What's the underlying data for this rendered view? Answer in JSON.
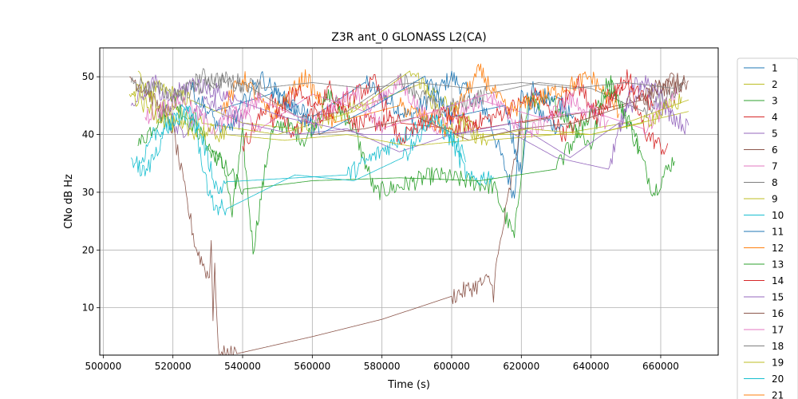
{
  "chart_data": {
    "type": "line",
    "title": "Z3R ant_0 GLONASS L2(CA)",
    "xlabel": "Time (s)",
    "ylabel": "CNo dB Hz",
    "xlim": [
      499000,
      676500
    ],
    "ylim": [
      1.8,
      55
    ],
    "xticks": [
      500000,
      520000,
      540000,
      560000,
      580000,
      600000,
      620000,
      640000,
      660000
    ],
    "yticks": [
      10,
      20,
      30,
      40,
      50
    ],
    "grid": true,
    "legend_position": "right",
    "series": [
      {
        "name": "1",
        "color": "#1f77b4",
        "points": [
          [
            531500,
            44
          ],
          [
            548000,
            47
          ],
          [
            560000,
            43
          ],
          [
            575000,
            49
          ],
          [
            588000,
            43
          ],
          [
            600000,
            50
          ],
          [
            610000,
            44
          ],
          [
            618000,
            29.3
          ],
          [
            620000,
            47
          ],
          [
            628000,
            42
          ],
          [
            632000,
            41
          ]
        ]
      },
      {
        "name": "2",
        "color": "#bcbd22",
        "points": [
          [
            507500,
            47
          ],
          [
            515000,
            48
          ],
          [
            525000,
            46
          ],
          [
            540000,
            42
          ],
          [
            555000,
            41
          ],
          [
            565000,
            43
          ],
          [
            575000,
            45
          ],
          [
            592000,
            49
          ],
          [
            598000,
            41
          ],
          [
            607000,
            40
          ],
          [
            640000,
            40
          ],
          [
            668000,
            44
          ]
        ]
      },
      {
        "name": "3",
        "color": "#2ca02c",
        "points": [
          [
            510000,
            38
          ],
          [
            520000,
            46
          ],
          [
            528000,
            40
          ],
          [
            535000,
            34
          ],
          [
            537000,
            26
          ],
          [
            540000,
            40
          ],
          [
            543000,
            20
          ],
          [
            548000,
            40
          ],
          [
            552000,
            42
          ],
          [
            558000,
            39
          ],
          [
            565000,
            47
          ],
          [
            572000,
            41
          ],
          [
            578000,
            30
          ],
          [
            585000,
            31
          ],
          [
            595000,
            33
          ],
          [
            604000,
            32
          ],
          [
            612000,
            31
          ],
          [
            618000,
            22
          ],
          [
            622000,
            46
          ],
          [
            630000,
            45
          ],
          [
            640000,
            38
          ],
          [
            645000,
            50
          ],
          [
            652000,
            40
          ],
          [
            658000,
            30
          ],
          [
            664000,
            36
          ]
        ]
      },
      {
        "name": "4",
        "color": "#d62728",
        "points": [
          [
            540000,
            38
          ],
          [
            548000,
            46
          ],
          [
            555000,
            40
          ],
          [
            565000,
            48
          ],
          [
            572000,
            42
          ],
          [
            585000,
            42
          ],
          [
            600000,
            41
          ],
          [
            612000,
            43
          ],
          [
            625000,
            47
          ],
          [
            632000,
            40
          ],
          [
            650000,
            49
          ],
          [
            656000,
            40
          ],
          [
            662000,
            37
          ]
        ]
      },
      {
        "name": "5",
        "color": "#9467bd",
        "points": [
          [
            508000,
            45
          ],
          [
            515000,
            49
          ],
          [
            522000,
            40
          ],
          [
            530000,
            46
          ],
          [
            540000,
            42
          ],
          [
            555000,
            40
          ],
          [
            570000,
            41
          ],
          [
            585000,
            37
          ],
          [
            600000,
            40
          ],
          [
            615000,
            41
          ],
          [
            630000,
            36
          ],
          [
            645000,
            34
          ],
          [
            652000,
            49
          ],
          [
            660000,
            45
          ],
          [
            668000,
            41
          ]
        ]
      },
      {
        "name": "6",
        "color": "#8c564b",
        "points": [
          [
            507500,
            50
          ],
          [
            512000,
            48
          ],
          [
            520000,
            41
          ],
          [
            526500,
            20.6
          ],
          [
            530500,
            15
          ],
          [
            531000,
            22
          ],
          [
            531500,
            9
          ],
          [
            532000,
            18
          ],
          [
            533000,
            1.8
          ],
          [
            538000,
            2
          ],
          [
            560000,
            5
          ],
          [
            580000,
            8
          ],
          [
            600000,
            12
          ],
          [
            611000,
            14.8
          ],
          [
            612000,
            12.5
          ],
          [
            612300,
            15.3
          ],
          [
            620000,
            42
          ],
          [
            640000,
            44
          ],
          [
            655000,
            46
          ],
          [
            662000,
            50
          ],
          [
            668000,
            48
          ]
        ]
      },
      {
        "name": "7",
        "color": "#e377c2",
        "points": [
          [
            535000,
            46
          ],
          [
            545000,
            41
          ],
          [
            560000,
            47
          ],
          [
            575000,
            44
          ],
          [
            585000,
            49
          ],
          [
            595000,
            41
          ],
          [
            608000,
            46
          ],
          [
            625000,
            43
          ],
          [
            640000,
            44
          ],
          [
            655000,
            41
          ],
          [
            665000,
            47
          ]
        ]
      },
      {
        "name": "8",
        "color": "#7f7f7f",
        "points": [
          [
            520000,
            45
          ],
          [
            528000,
            50
          ],
          [
            540000,
            49
          ],
          [
            556000,
            43
          ],
          [
            570000,
            44
          ],
          [
            585000,
            50
          ],
          [
            597000,
            44
          ],
          [
            610000,
            47
          ],
          [
            625000,
            49
          ],
          [
            640000,
            48
          ],
          [
            655000,
            44
          ],
          [
            667000,
            49
          ]
        ]
      },
      {
        "name": "9",
        "color": "#bcbd22",
        "points": [
          [
            510000,
            51
          ],
          [
            516000,
            45
          ],
          [
            528000,
            42
          ],
          [
            550000,
            40
          ],
          [
            572000,
            44
          ],
          [
            588000,
            51
          ],
          [
            595000,
            47
          ],
          [
            610000,
            39
          ],
          [
            630000,
            40
          ],
          [
            650000,
            42
          ],
          [
            668000,
            46
          ]
        ]
      },
      {
        "name": "10",
        "color": "#17becf",
        "points": [
          [
            510000,
            34
          ],
          [
            514000,
            40
          ],
          [
            520000,
            42
          ],
          [
            526000,
            44
          ],
          [
            533000,
            30
          ],
          [
            535000,
            31.8
          ],
          [
            570000,
            33
          ],
          [
            594000,
            43
          ],
          [
            600000,
            39
          ],
          [
            605000,
            32
          ],
          [
            612000,
            33
          ]
        ]
      },
      {
        "name": "11",
        "color": "#1f77b4",
        "points": [
          [
            525000,
            48
          ],
          [
            535000,
            40
          ],
          [
            545000,
            50
          ],
          [
            552000,
            46
          ],
          [
            562000,
            40
          ],
          [
            578000,
            45
          ],
          [
            592000,
            50
          ],
          [
            600000,
            43
          ],
          [
            615000,
            45
          ],
          [
            620000,
            33
          ],
          [
            623000,
            48
          ],
          [
            635000,
            44
          ]
        ]
      },
      {
        "name": "12",
        "color": "#ff7f0e",
        "points": [
          [
            534000,
            44
          ],
          [
            540000,
            50
          ],
          [
            548000,
            43
          ],
          [
            558000,
            50
          ],
          [
            566000,
            42
          ],
          [
            585000,
            45
          ],
          [
            598000,
            41
          ],
          [
            608000,
            51
          ],
          [
            616000,
            44
          ],
          [
            628000,
            47
          ],
          [
            640000,
            50
          ],
          [
            648000,
            44
          ]
        ]
      },
      {
        "name": "13",
        "color": "#2ca02c",
        "points": [
          [
            530000,
            38
          ],
          [
            540000,
            30.5
          ],
          [
            560000,
            32
          ],
          [
            585000,
            32.5
          ],
          [
            608000,
            32
          ],
          [
            630000,
            34
          ],
          [
            640000,
            44
          ],
          [
            646000,
            48
          ],
          [
            654000,
            38
          ]
        ]
      },
      {
        "name": "14",
        "color": "#d62728",
        "points": [
          [
            548000,
            42
          ],
          [
            556000,
            48
          ],
          [
            563000,
            43
          ],
          [
            570000,
            46
          ],
          [
            578000,
            49
          ],
          [
            585000,
            39
          ],
          [
            598000,
            44
          ],
          [
            608000,
            41
          ],
          [
            628000,
            43
          ],
          [
            636000,
            49
          ],
          [
            642000,
            43
          ],
          [
            650000,
            50
          ],
          [
            658000,
            44
          ]
        ]
      },
      {
        "name": "15",
        "color": "#9467bd",
        "points": [
          [
            518000,
            46
          ],
          [
            526000,
            49
          ],
          [
            538000,
            46
          ],
          [
            552000,
            43
          ],
          [
            575000,
            40
          ],
          [
            600000,
            40
          ],
          [
            618000,
            42
          ],
          [
            634000,
            36
          ],
          [
            648000,
            42
          ],
          [
            656000,
            49
          ],
          [
            664000,
            44
          ]
        ]
      },
      {
        "name": "16",
        "color": "#8c564b",
        "points": [
          [
            560000,
            40
          ],
          [
            575000,
            41
          ],
          [
            590000,
            43
          ],
          [
            605000,
            39
          ],
          [
            620000,
            41
          ],
          [
            635000,
            42
          ],
          [
            650000,
            45
          ],
          [
            660000,
            48
          ],
          [
            667000,
            49
          ]
        ]
      },
      {
        "name": "17",
        "color": "#e377c2",
        "points": [
          [
            512000,
            43
          ],
          [
            522000,
            46
          ],
          [
            532000,
            41
          ],
          [
            545000,
            46
          ],
          [
            560000,
            42
          ],
          [
            572000,
            48
          ],
          [
            580000,
            41
          ],
          [
            595000,
            44
          ],
          [
            610000,
            47
          ],
          [
            622000,
            40
          ],
          [
            634000,
            46
          ],
          [
            645000,
            42
          ]
        ]
      },
      {
        "name": "18",
        "color": "#7f7f7f",
        "points": [
          [
            508000,
            49
          ],
          [
            520000,
            47
          ],
          [
            532000,
            49
          ],
          [
            545000,
            48
          ],
          [
            560000,
            49
          ],
          [
            575000,
            48
          ],
          [
            590000,
            49
          ],
          [
            605000,
            48
          ],
          [
            620000,
            49
          ],
          [
            635000,
            48
          ],
          [
            650000,
            49
          ],
          [
            664000,
            48
          ]
        ]
      },
      {
        "name": "19",
        "color": "#bcbd22",
        "points": [
          [
            508000,
            47
          ],
          [
            514000,
            44
          ],
          [
            522000,
            41
          ],
          [
            535000,
            40
          ],
          [
            552000,
            39
          ],
          [
            570000,
            40
          ],
          [
            588000,
            38
          ],
          [
            605000,
            39
          ],
          [
            622000,
            41
          ],
          [
            640000,
            40
          ],
          [
            655000,
            42
          ],
          [
            666000,
            46
          ]
        ]
      },
      {
        "name": "20",
        "color": "#17becf",
        "points": [
          [
            508000,
            36
          ],
          [
            512000,
            33
          ],
          [
            518000,
            41
          ],
          [
            525000,
            45
          ],
          [
            531000,
            28
          ],
          [
            535000,
            27
          ],
          [
            555000,
            33
          ],
          [
            572000,
            32
          ],
          [
            586000,
            36
          ],
          [
            596000,
            43
          ],
          [
            604000,
            36
          ]
        ]
      }
    ],
    "legend_extra_label": "21"
  }
}
